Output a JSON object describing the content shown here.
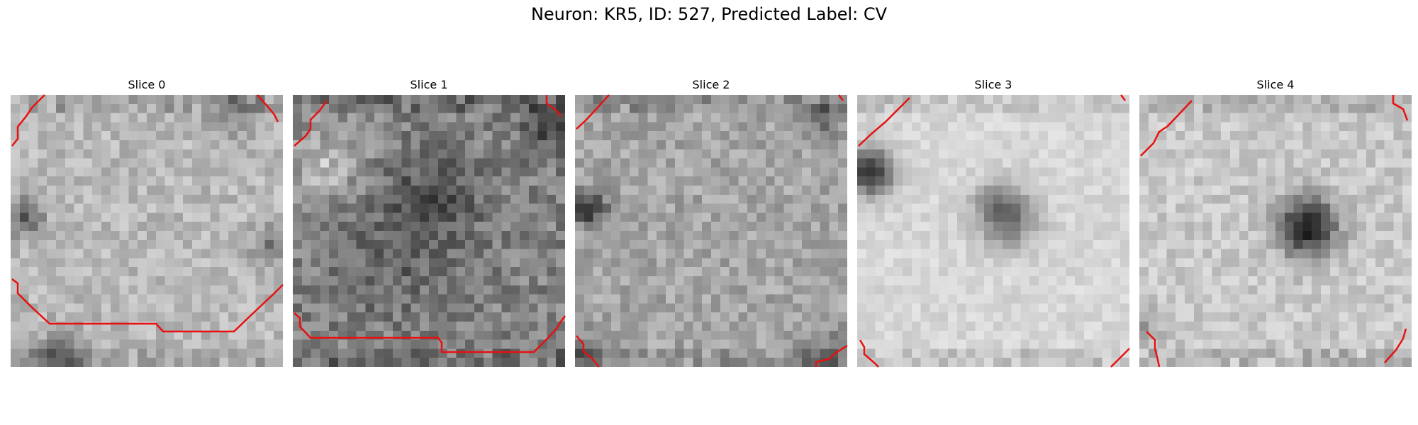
{
  "title": "Neuron: KR5, ID: 527, Predicted Label: CV",
  "contour_color": "#e81010",
  "colormap": "gray",
  "slices": [
    {
      "label": "Slice 0"
    },
    {
      "label": "Slice 1"
    },
    {
      "label": "Slice 2"
    },
    {
      "label": "Slice 3"
    },
    {
      "label": "Slice 4"
    }
  ]
}
